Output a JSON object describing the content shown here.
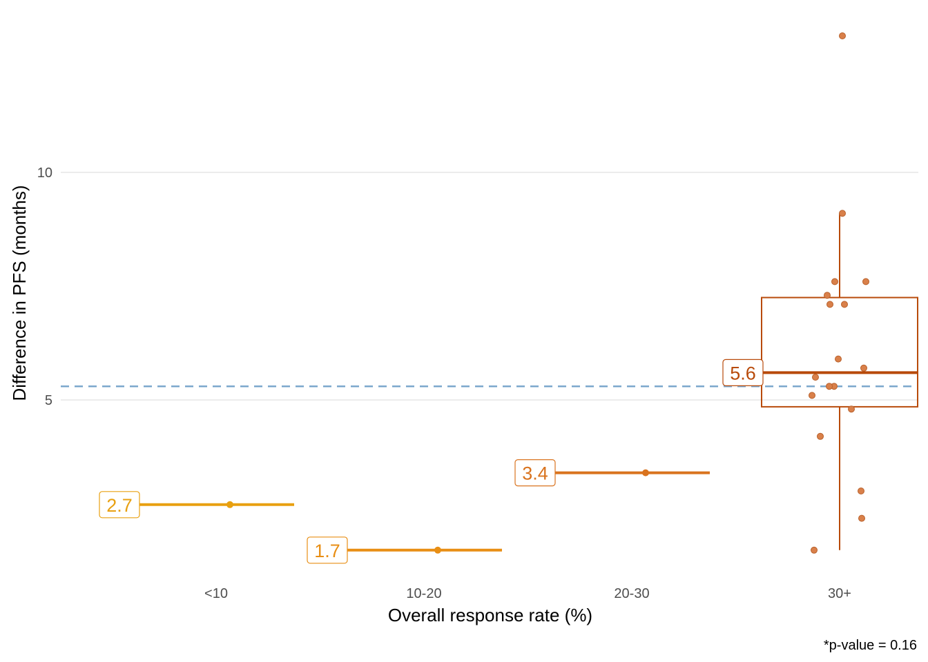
{
  "chart_data": {
    "type": "box",
    "xlabel": "Overall response rate (%)",
    "ylabel": "Difference in PFS (months)",
    "caption": "*p-value = 0.16",
    "categories": [
      "<10",
      "10-20",
      "20-30",
      "30+"
    ],
    "y_ticks": [
      5,
      10
    ],
    "ylim": [
      1.7,
      13.1
    ],
    "reference_line": {
      "y": 5.3,
      "style": "dashed",
      "color": "#7ba7cc"
    },
    "grid": "horizontal major",
    "groups": [
      {
        "category": "<10",
        "median": 2.7,
        "label": "2.7",
        "color": "#e8a010",
        "points": [
          2.7
        ]
      },
      {
        "category": "10-20",
        "median": 1.7,
        "label": "1.7",
        "color": "#e88e14",
        "points": [
          1.7
        ]
      },
      {
        "category": "20-30",
        "median": 3.4,
        "label": "3.4",
        "color": "#d9731e",
        "points": [
          3.4
        ]
      },
      {
        "category": "30+",
        "median": 5.6,
        "label": "5.6",
        "color": "#b84a0a",
        "box": {
          "q1": 4.85,
          "q3": 7.25,
          "whisker_low": 1.7,
          "whisker_high": 9.1
        },
        "points": [
          13.0,
          9.1,
          7.6,
          7.6,
          7.3,
          7.1,
          7.1,
          5.9,
          5.7,
          5.5,
          5.3,
          5.3,
          5.1,
          4.8,
          4.2,
          3.0,
          2.4,
          1.7
        ]
      }
    ]
  }
}
